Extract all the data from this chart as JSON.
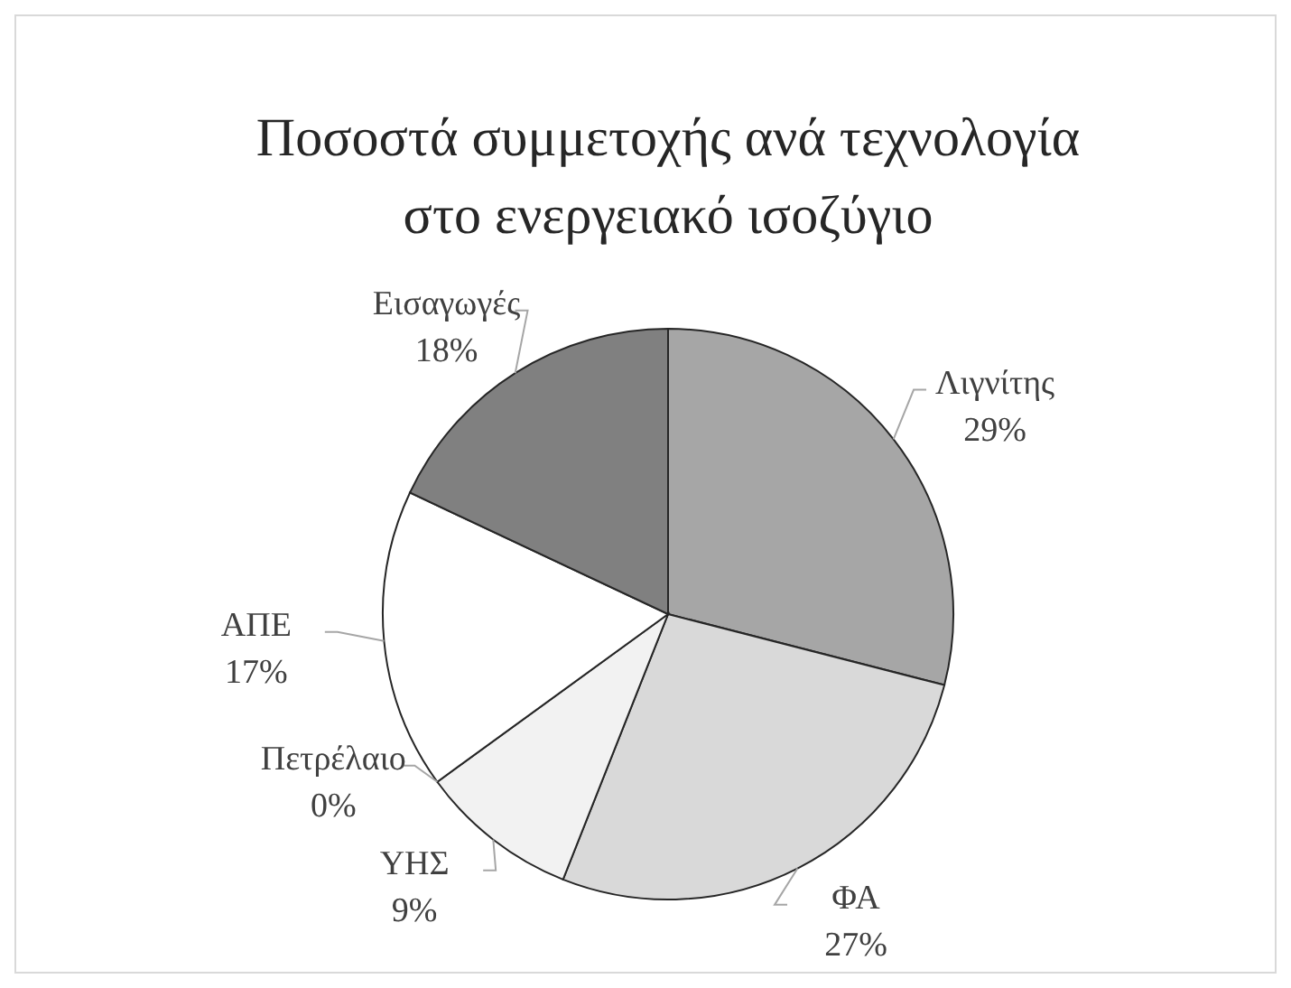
{
  "chart_data": {
    "type": "pie",
    "title": "Ποσοστά συμμετοχής ανά τεχνολογία στο ενεργειακό ισοζύγιο",
    "categories": [
      "Λιγνίτης",
      "ΦΑ",
      "ΥΗΣ",
      "Πετρέλαιο",
      "ΑΠΕ",
      "Εισαγωγές"
    ],
    "values": [
      29,
      27,
      9,
      0,
      17,
      18
    ],
    "colors": [
      "#a6a6a6",
      "#d9d9d9",
      "#f2f2f2",
      "#7f7f7f",
      "#ffffff",
      "#808080"
    ],
    "value_labels": [
      "29%",
      "27%",
      "9%",
      "0%",
      "17%",
      "18%"
    ]
  }
}
